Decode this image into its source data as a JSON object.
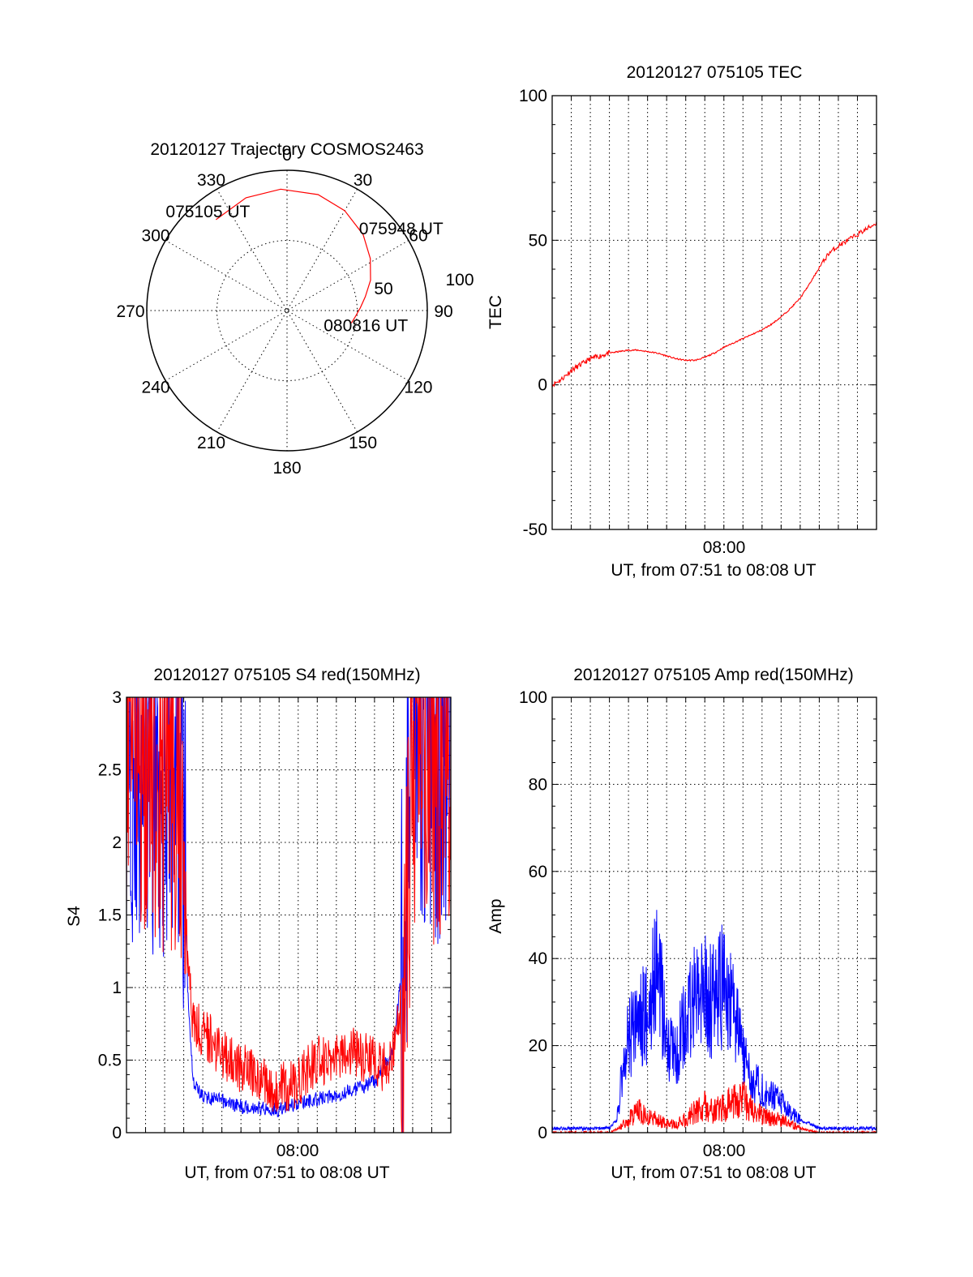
{
  "chart_data": [
    {
      "id": "trajectory",
      "type": "polar",
      "title": "20120127 Trajectory COSMOS2463",
      "azimuth_labels": [
        "0",
        "30",
        "60",
        "90",
        "120",
        "150",
        "180",
        "210",
        "240",
        "270",
        "300",
        "330"
      ],
      "radial_labels": [
        "50",
        "100"
      ],
      "series": [
        {
          "color": "#ff0000",
          "points_az_el": [
            [
              322,
              16
            ],
            [
              340,
              13
            ],
            [
              357,
              12
            ],
            [
              15,
              13
            ],
            [
              30,
              16
            ],
            [
              45,
              21
            ],
            [
              58,
              27
            ],
            [
              70,
              33
            ],
            [
              80,
              39
            ],
            [
              88,
              43
            ],
            [
              95,
              46
            ],
            [
              101,
              48
            ]
          ]
        }
      ],
      "annotations": [
        {
          "text": "075105 UT",
          "az": 322,
          "el": 16
        },
        {
          "text": "075948 UT",
          "az": 45,
          "el": 21
        },
        {
          "text": "080816 UT",
          "az": 101,
          "el": 48
        }
      ]
    },
    {
      "id": "tec",
      "type": "line",
      "title": "20120127 075105 TEC",
      "xlabel": "UT, from 07:51 to 08:08 UT",
      "ylabel": "TEC",
      "xtick_labels": [
        "08:00"
      ],
      "ylim": [
        -50,
        100
      ],
      "yticks": [
        "-50",
        "0",
        "50",
        "100"
      ],
      "grid": true,
      "series": [
        {
          "color": "#ff0000",
          "x_min": [
            0,
            0.5,
            1,
            1.5,
            2,
            2.5,
            3,
            3.5,
            4,
            4.5,
            5,
            5.5,
            6,
            6.5,
            7,
            7.5,
            8,
            8.5,
            9,
            9.5,
            10,
            10.5,
            11,
            11.5,
            12,
            12.5,
            13,
            13.5,
            14,
            14.5,
            15,
            15.5,
            16,
            16.5,
            17
          ],
          "y": [
            0,
            2,
            5,
            7,
            9,
            10,
            11,
            11.5,
            12,
            12,
            11.5,
            11,
            10,
            9,
            8.5,
            8.5,
            9.5,
            11,
            13,
            14.5,
            16,
            17.5,
            19,
            21,
            23.5,
            26.5,
            30,
            35,
            40.5,
            45.5,
            48,
            50,
            52,
            54,
            56
          ]
        }
      ]
    },
    {
      "id": "s4",
      "type": "line",
      "title": "20120127 075105 S4 red(150MHz)",
      "xlabel": "UT, from 07:51 to 08:08 UT",
      "ylabel": "S4",
      "xtick_labels": [
        "08:00"
      ],
      "ylim": [
        0,
        3
      ],
      "yticks": [
        "0",
        "0.5",
        "1",
        "1.5",
        "2",
        "2.5",
        "3"
      ],
      "grid": true,
      "series": [
        {
          "color": "#0000ff",
          "x_min": [
            0,
            1,
            2,
            2.5,
            3,
            3.2,
            3.5,
            4,
            5,
            6,
            7,
            8,
            9,
            10,
            11,
            12,
            13,
            13.5,
            14,
            14.5,
            15,
            15.5,
            16,
            16.5,
            17
          ],
          "y": [
            2.8,
            2.5,
            2.6,
            2.7,
            2.2,
            1.0,
            0.35,
            0.25,
            0.22,
            0.18,
            0.17,
            0.16,
            0.2,
            0.23,
            0.26,
            0.3,
            0.35,
            0.45,
            0.6,
            1.2,
            2.9,
            2.8,
            2.7,
            2.6,
            2.8
          ]
        },
        {
          "color": "#ff0000",
          "x_min": [
            0,
            1,
            2,
            2.5,
            3,
            3.2,
            3.5,
            4,
            5,
            6,
            7,
            8,
            9,
            10,
            11,
            12,
            13,
            13.5,
            14,
            14.5,
            15,
            15.5,
            16,
            16.5,
            17
          ],
          "y": [
            2.9,
            2.7,
            2.5,
            2.6,
            2.4,
            1.1,
            0.75,
            0.7,
            0.55,
            0.45,
            0.35,
            0.3,
            0.35,
            0.5,
            0.5,
            0.55,
            0.5,
            0.45,
            0.55,
            1.0,
            2.8,
            2.9,
            2.7,
            2.6,
            2.9
          ]
        }
      ]
    },
    {
      "id": "amp",
      "type": "line",
      "title": "20120127 075105 Amp red(150MHz)",
      "xlabel": "UT, from 07:51 to 08:08 UT",
      "ylabel": "Amp",
      "xtick_labels": [
        "08:00"
      ],
      "ylim": [
        0,
        100
      ],
      "yticks": [
        "0",
        "20",
        "40",
        "60",
        "80",
        "100"
      ],
      "grid": true,
      "series": [
        {
          "color": "#0000ff",
          "x_min": [
            0,
            1,
            2,
            3,
            3.4,
            3.7,
            4,
            4.5,
            5,
            5.5,
            6,
            6.5,
            7,
            7.5,
            8,
            8.5,
            9,
            9.5,
            10,
            10.5,
            11,
            11.5,
            12,
            12.5,
            13,
            13.5,
            14,
            15,
            16,
            17
          ],
          "y": [
            1,
            1,
            1,
            1,
            3,
            15,
            22,
            25,
            28,
            38,
            22,
            18,
            26,
            30,
            32,
            30,
            34,
            28,
            18,
            12,
            10,
            9,
            7,
            5,
            3,
            2,
            1,
            1,
            1,
            1
          ]
        },
        {
          "color": "#ff0000",
          "x_min": [
            0,
            1,
            2,
            3,
            3.5,
            4,
            4.5,
            5,
            5.5,
            6,
            6.5,
            7,
            7.5,
            8,
            8.5,
            9,
            9.5,
            10,
            10.5,
            11,
            11.5,
            12,
            12.5,
            13,
            14,
            15,
            16,
            17
          ],
          "y": [
            0,
            0,
            0,
            0,
            1,
            3,
            5,
            4,
            3,
            2,
            2,
            3,
            5,
            6,
            5,
            6,
            7,
            8,
            5,
            4,
            3,
            3,
            2,
            1,
            0,
            0,
            0,
            0
          ]
        }
      ]
    }
  ]
}
